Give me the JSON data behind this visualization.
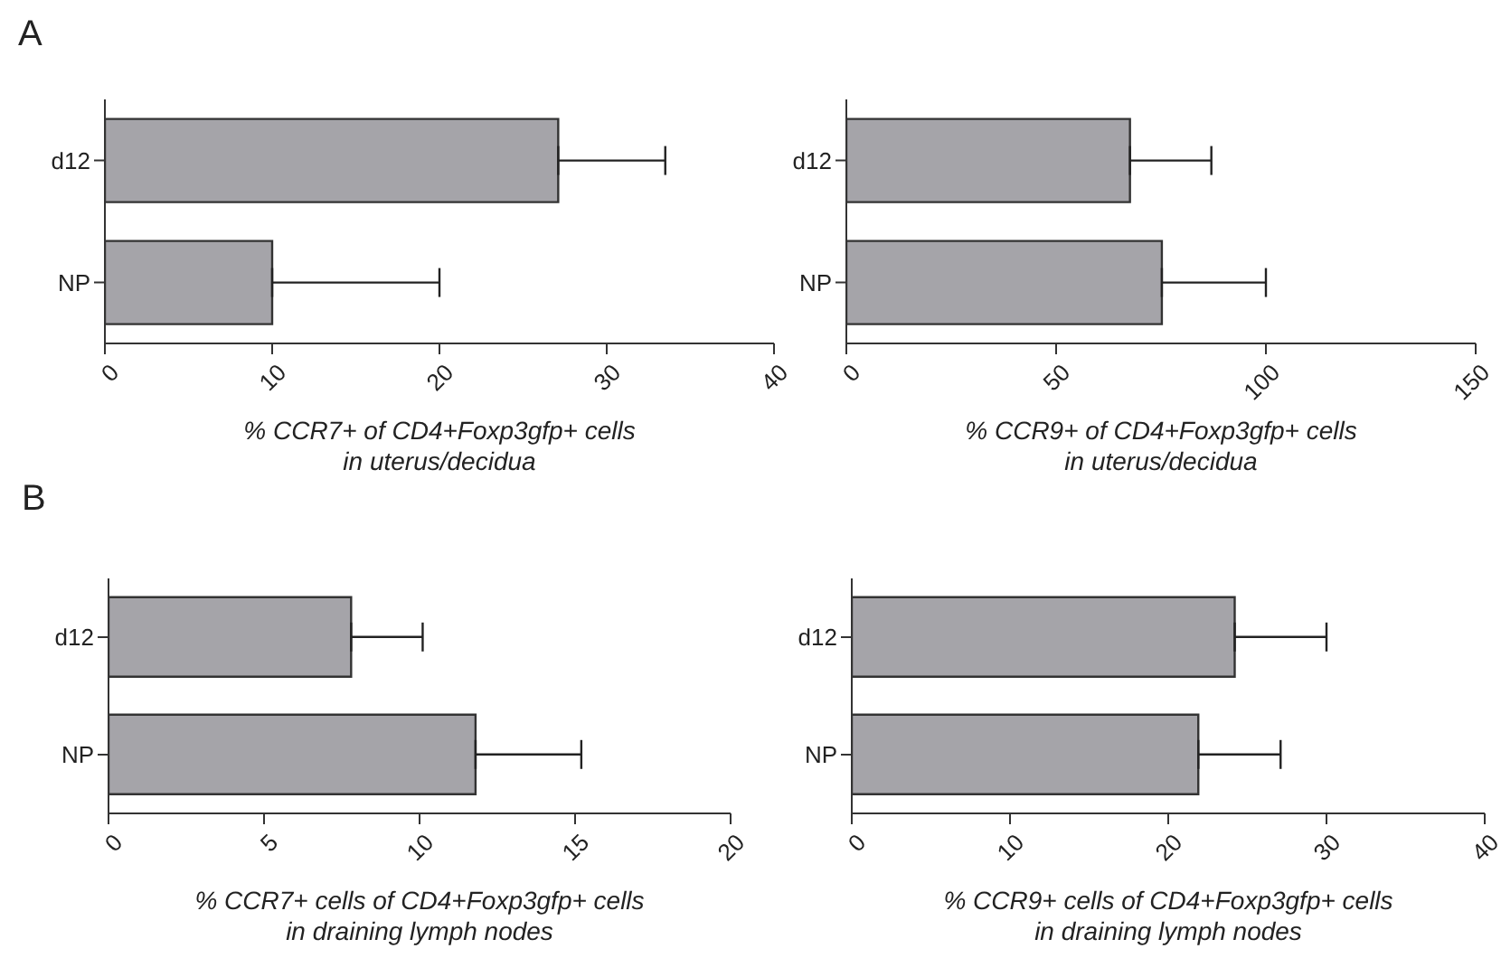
{
  "chart_data": [
    {
      "type": "bar",
      "orientation": "horizontal",
      "annotations": [
        "A"
      ],
      "categories": [
        "d12",
        "NP"
      ],
      "values": [
        27.1,
        10.0
      ],
      "errors": [
        [
          27.1,
          33.5
        ],
        [
          10.0,
          20.0
        ]
      ],
      "color": "#a5a4a9",
      "xlim": [
        0,
        40
      ],
      "xticks": [
        0,
        10,
        20,
        30,
        40
      ],
      "xlabel": "% CCR7+ of CD4+Foxp3gfp+ cells\nin uterus/decidua"
    },
    {
      "type": "bar",
      "orientation": "horizontal",
      "categories": [
        "d12",
        "NP"
      ],
      "values": [
        67.6,
        75.2
      ],
      "errors": [
        [
          67.6,
          87
        ],
        [
          75.2,
          100
        ]
      ],
      "color": "#a5a4a9",
      "xlim": [
        0,
        150
      ],
      "xticks": [
        0,
        50,
        100,
        150
      ],
      "xlabel": "% CCR9+ of CD4+Foxp3gfp+ cells\nin uterus/decidua"
    },
    {
      "type": "bar",
      "orientation": "horizontal",
      "annotations": [
        "B"
      ],
      "categories": [
        "d12",
        "NP"
      ],
      "values": [
        7.8,
        11.8
      ],
      "errors": [
        [
          7.8,
          10.1
        ],
        [
          11.8,
          15.2
        ]
      ],
      "color": "#a5a4a9",
      "xlim": [
        0,
        20
      ],
      "xticks": [
        0,
        5,
        10,
        15,
        20
      ],
      "xlabel": "% CCR7+  cells of CD4+Foxp3gfp+ cells\nin draining lymph nodes"
    },
    {
      "type": "bar",
      "orientation": "horizontal",
      "categories": [
        "d12",
        "NP"
      ],
      "values": [
        24.2,
        21.9
      ],
      "errors": [
        [
          24.2,
          30.0
        ],
        [
          21.9,
          27.1
        ]
      ],
      "color": "#a5a4a9",
      "xlim": [
        0,
        40
      ],
      "xticks": [
        0,
        10,
        20,
        30,
        40
      ],
      "xlabel": "% CCR9+ cells of CD4+Foxp3gfp+ cells\nin draining lymph nodes"
    }
  ]
}
